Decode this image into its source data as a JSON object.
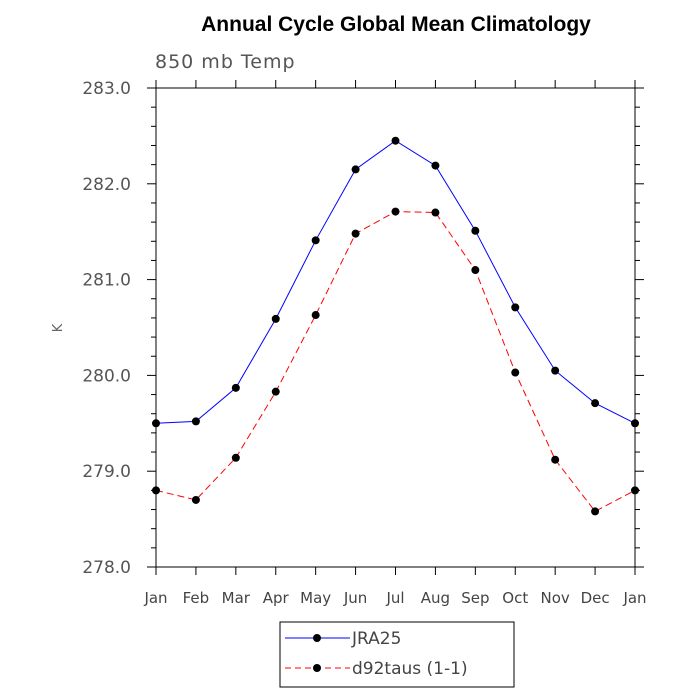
{
  "chart_data": {
    "type": "line",
    "title": "Annual Cycle Global Mean Climatology",
    "subtitle": "850 mb Temp",
    "xlabel": "",
    "ylabel": "K",
    "ylim": [
      278.0,
      283.0
    ],
    "yticks": [
      "278.0",
      "279.0",
      "280.0",
      "281.0",
      "282.0",
      "283.0"
    ],
    "categories": [
      "Jan",
      "Feb",
      "Mar",
      "Apr",
      "May",
      "Jun",
      "Jul",
      "Aug",
      "Sep",
      "Oct",
      "Nov",
      "Dec",
      "Jan"
    ],
    "grid": false,
    "legend_position": "bottom",
    "series": [
      {
        "name": "JRA25",
        "color": "#0000ff",
        "line_style": "solid",
        "marker": "filled-circle",
        "values": [
          279.5,
          279.52,
          279.87,
          280.59,
          281.41,
          282.15,
          282.45,
          282.19,
          281.51,
          280.71,
          280.05,
          279.71,
          279.5
        ]
      },
      {
        "name": "d92taus (1-1)",
        "color": "#ff0000",
        "line_style": "dashed",
        "marker": "filled-circle",
        "values": [
          278.8,
          278.7,
          279.14,
          279.83,
          280.63,
          281.48,
          281.71,
          281.7,
          281.1,
          280.03,
          279.12,
          278.58,
          278.8
        ]
      }
    ]
  }
}
